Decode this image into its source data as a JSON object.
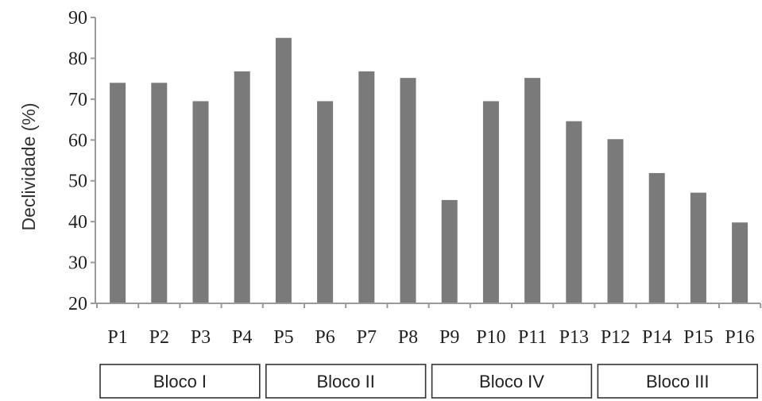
{
  "chart_data": {
    "type": "bar",
    "ylabel": "Declividade (%)",
    "xlabel": "",
    "ylim": [
      20,
      90
    ],
    "yticks": [
      "20",
      "30",
      "40",
      "50",
      "60",
      "70",
      "80",
      "90"
    ],
    "categories": [
      "P1",
      "P2",
      "P3",
      "P4",
      "P5",
      "P6",
      "P7",
      "P8",
      "P9",
      "P10",
      "P11",
      "P13",
      "P12",
      "P14",
      "P15",
      "P16"
    ],
    "values": [
      74,
      74,
      69.5,
      76.8,
      85,
      69.5,
      76.8,
      75.2,
      45.3,
      69.5,
      75.2,
      64.6,
      60.2,
      51.9,
      47.1,
      39.8
    ],
    "groups": [
      {
        "label": "Bloco I",
        "start": 0,
        "end": 3
      },
      {
        "label": "Bloco II",
        "start": 4,
        "end": 7
      },
      {
        "label": "Bloco IV",
        "start": 8,
        "end": 11
      },
      {
        "label": "Bloco III",
        "start": 12,
        "end": 15
      }
    ],
    "bar_color": "#7a7a7a",
    "axis_color": "#9a9a9a",
    "grid": false,
    "legend": "none"
  }
}
